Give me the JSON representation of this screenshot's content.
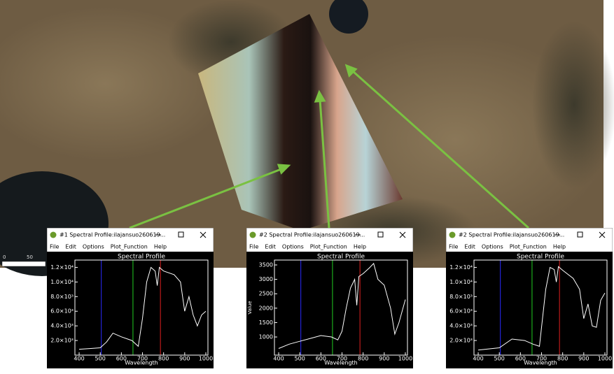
{
  "scale_bar": {
    "labels": [
      "0",
      "50"
    ]
  },
  "windows": [
    {
      "title": "#1 Spectral Profile:ilajansuo260619...",
      "menu": [
        "File",
        "Edit",
        "Options",
        "Plot_Function",
        "Help"
      ],
      "chart": {
        "type": "line",
        "title": "Spectral Profile",
        "xlabel": "Wavelength",
        "xlim": [
          380,
          1010
        ],
        "xticks": [
          400,
          500,
          600,
          700,
          800,
          900,
          1000
        ],
        "ylim": [
          0,
          13000
        ],
        "yticks": [
          {
            "value": 2000,
            "label": "2.0×10³"
          },
          {
            "value": 4000,
            "label": "4.0×10³"
          },
          {
            "value": 6000,
            "label": "6.0×10³"
          },
          {
            "value": 8000,
            "label": "8.0×10³"
          },
          {
            "value": 10000,
            "label": "1.0×10⁴"
          },
          {
            "value": 12000,
            "label": "1.2×10⁴"
          }
        ],
        "bands": [
          {
            "color": "#2a2aff",
            "value": 505
          },
          {
            "color": "#22cc22",
            "value": 655
          },
          {
            "color": "#e02020",
            "value": 785
          }
        ],
        "x": [
          400,
          450,
          500,
          530,
          560,
          600,
          650,
          680,
          700,
          720,
          740,
          760,
          770,
          780,
          800,
          850,
          880,
          900,
          920,
          940,
          960,
          980,
          1000
        ],
        "series": [
          {
            "color": "#ffffff",
            "values": [
              800,
              900,
              1000,
              1800,
              3000,
              2500,
              2000,
              1200,
              5000,
              10000,
              12000,
              11500,
              9500,
              12000,
              11500,
              11000,
              10000,
              6000,
              8000,
              5500,
              4000,
              5500,
              6000
            ]
          }
        ]
      }
    },
    {
      "title": "#2 Spectral Profile:ilajansuo260619...",
      "menu": [
        "File",
        "Edit",
        "Options",
        "Plot_Function",
        "Help"
      ],
      "chart": {
        "type": "line",
        "title": "Spectral Profile",
        "xlabel": "Wavelength",
        "ylabel": "Value",
        "xlim": [
          380,
          1010
        ],
        "xticks": [
          400,
          500,
          600,
          700,
          800,
          900,
          1000
        ],
        "ylim": [
          370,
          3670
        ],
        "yticks": [
          1000,
          1500,
          2000,
          2500,
          3000,
          3500
        ],
        "bands": [
          {
            "color": "#2a2aff",
            "value": 505
          },
          {
            "color": "#22cc22",
            "value": 655
          },
          {
            "color": "#e02020",
            "value": 785
          }
        ],
        "x": [
          400,
          450,
          500,
          550,
          600,
          650,
          680,
          700,
          720,
          740,
          760,
          770,
          780,
          800,
          830,
          850,
          870,
          900,
          930,
          950,
          970,
          1000
        ],
        "series": [
          {
            "color": "#ffffff",
            "values": [
              600,
              750,
              850,
              950,
              1050,
              1000,
              900,
              1200,
              2000,
              2700,
              3000,
              2100,
              3100,
              3200,
              3400,
              3550,
              3000,
              2800,
              2000,
              1100,
              1500,
              2300
            ]
          }
        ]
      }
    },
    {
      "title": "#2 Spectral Profile:ilajansuo260619...",
      "menu": [
        "File",
        "Edit",
        "Options",
        "Plot_Function",
        "Help"
      ],
      "chart": {
        "type": "line",
        "title": "Spectral Profile",
        "xlabel": "Wavelength",
        "xlim": [
          380,
          1010
        ],
        "xticks": [
          400,
          500,
          600,
          700,
          800,
          900,
          1000
        ],
        "ylim": [
          0,
          13000
        ],
        "yticks": [
          {
            "value": 2000,
            "label": "2.0×10³"
          },
          {
            "value": 4000,
            "label": "4.0×10³"
          },
          {
            "value": 6000,
            "label": "6.0×10³"
          },
          {
            "value": 8000,
            "label": "8.0×10³"
          },
          {
            "value": 10000,
            "label": "1.0×10⁴"
          },
          {
            "value": 12000,
            "label": "1.2×10⁴"
          }
        ],
        "bands": [
          {
            "color": "#2a2aff",
            "value": 505
          },
          {
            "color": "#22cc22",
            "value": 655
          },
          {
            "color": "#e02020",
            "value": 785
          }
        ],
        "x": [
          400,
          450,
          500,
          560,
          620,
          660,
          690,
          720,
          740,
          760,
          770,
          780,
          800,
          850,
          880,
          900,
          920,
          940,
          960,
          980,
          1000
        ],
        "series": [
          {
            "color": "#ffffff",
            "values": [
              700,
              850,
              1000,
              2200,
              2000,
              1500,
              1200,
              9000,
              12000,
              11700,
              10000,
              12100,
              11600,
              10500,
              9000,
              5000,
              7000,
              4000,
              3800,
              7500,
              8500
            ]
          }
        ]
      }
    }
  ]
}
